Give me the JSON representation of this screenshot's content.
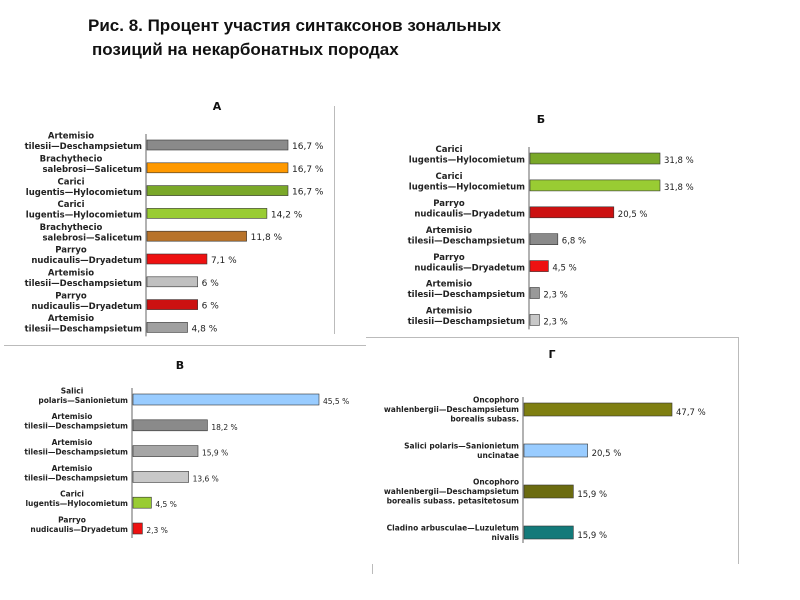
{
  "figure_title_line1": "Рис. 8. Процент участия синтаксонов зональных",
  "figure_title_line2": "позиций на некарбонатных породах",
  "chart_data": [
    {
      "type": "bar",
      "orientation": "horizontal",
      "title": "А",
      "xlim": [
        0,
        16.7
      ],
      "bars": [
        {
          "label1": "Artemisio",
          "label2": "tilesii—Deschampsietum",
          "value": 16.7,
          "value_label": "16,7 %",
          "color": "#8a8a8a"
        },
        {
          "label1": "Brachythecio",
          "label2": "salebrosi—Salicetum",
          "value": 16.7,
          "value_label": "16,7 %",
          "color": "#ff9900"
        },
        {
          "label1": "Carici",
          "label2": "lugentis—Hylocomietum",
          "value": 16.7,
          "value_label": "16,7 %",
          "color": "#7aa829"
        },
        {
          "label1": "Carici",
          "label2": "lugentis—Hylocomietum",
          "value": 14.2,
          "value_label": "14,2 %",
          "color": "#99cc33"
        },
        {
          "label1": "Brachythecio",
          "label2": "salebrosi—Salicetum",
          "value": 11.8,
          "value_label": "11,8 %",
          "color": "#b8732a"
        },
        {
          "label1": "Parryo",
          "label2": "nudicaulis—Dryadetum",
          "value": 7.1,
          "value_label": "7,1 %",
          "color": "#ee1111"
        },
        {
          "label1": "Artemisio",
          "label2": "tilesii—Deschampsietum",
          "value": 6,
          "value_label": "6 %",
          "color": "#c0c0c0"
        },
        {
          "label1": "Parryo",
          "label2": "nudicaulis—Dryadetum",
          "value": 6,
          "value_label": "6 %",
          "color": "#cc1111"
        },
        {
          "label1": "Artemisio",
          "label2": "tilesii—Deschampsietum",
          "value": 4.8,
          "value_label": "4,8 %",
          "color": "#a0a0a0"
        }
      ]
    },
    {
      "type": "bar",
      "orientation": "horizontal",
      "title": "Б",
      "xlim": [
        0,
        31.8
      ],
      "bars": [
        {
          "label1": "Carici",
          "label2": "lugentis—Hylocomietum",
          "value": 31.8,
          "value_label": "31,8 %",
          "color": "#7aa829"
        },
        {
          "label1": "Carici",
          "label2": "lugentis—Hylocomietum",
          "value": 31.8,
          "value_label": "31,8 %",
          "color": "#99cc33"
        },
        {
          "label1": "Parryo",
          "label2": "nudicaulis—Dryadetum",
          "value": 20.5,
          "value_label": "20,5 %",
          "color": "#cc1111"
        },
        {
          "label1": "Artemisio",
          "label2": "tilesii—Deschampsietum",
          "value": 6.8,
          "value_label": "6,8 %",
          "color": "#8a8a8a"
        },
        {
          "label1": "Parryo",
          "label2": "nudicaulis—Dryadetum",
          "value": 4.5,
          "value_label": "4,5 %",
          "color": "#ee1111"
        },
        {
          "label1": "Artemisio",
          "label2": "tilesii—Deschampsietum",
          "value": 2.3,
          "value_label": "2,3 %",
          "color": "#999999"
        },
        {
          "label1": "Artemisio",
          "label2": "tilesii—Deschampsietum",
          "value": 2.3,
          "value_label": "2,3 %",
          "color": "#c8c8c8"
        }
      ]
    },
    {
      "type": "bar",
      "orientation": "horizontal",
      "title": "В",
      "xlim": [
        0,
        45.5
      ],
      "bars": [
        {
          "label1": "Salici",
          "label2": "polaris—Sanionietum",
          "value": 45.5,
          "value_label": "45,5 %",
          "color": "#99ccff"
        },
        {
          "label1": "Artemisio",
          "label2": "tilesii—Deschampsietum",
          "value": 18.2,
          "value_label": "18,2 %",
          "color": "#8a8a8a"
        },
        {
          "label1": "Artemisio",
          "label2": "tilesii—Deschampsietum",
          "value": 15.9,
          "value_label": "15,9 %",
          "color": "#a6a6a6"
        },
        {
          "label1": "Artemisio",
          "label2": "tilesii—Deschampsietum",
          "value": 13.6,
          "value_label": "13,6 %",
          "color": "#c8c8c8"
        },
        {
          "label1": "Carici",
          "label2": "lugentis—Hylocomietum",
          "value": 4.5,
          "value_label": "4,5 %",
          "color": "#99cc33"
        },
        {
          "label1": "Parryo",
          "label2": "nudicaulis—Dryadetum",
          "value": 2.3,
          "value_label": "2,3 %",
          "color": "#ee1111"
        }
      ]
    },
    {
      "type": "bar",
      "orientation": "horizontal",
      "title": "Г",
      "xlim": [
        0,
        47.7
      ],
      "bars": [
        {
          "label1": "Oncophoro",
          "label2": "wahlenbergii—Deschampsietum",
          "label3": "borealis subass.",
          "value": 47.7,
          "value_label": "47,7 %",
          "color": "#7f7f11"
        },
        {
          "label1": "Salici polaris—Sanionietum",
          "label2": "uncinatae",
          "value": 20.5,
          "value_label": "20,5 %",
          "color": "#99ccff"
        },
        {
          "label1": "Oncophoro",
          "label2": "wahlenbergii—Deschampsietum",
          "label3": "borealis subass. petasitetosum",
          "value": 15.9,
          "value_label": "15,9 %",
          "color": "#6b6b10"
        },
        {
          "label1": "Cladino arbusculae—Luzuletum",
          "label2": "nivalis",
          "value": 15.9,
          "value_label": "15,9 %",
          "color": "#137a7a"
        }
      ]
    }
  ]
}
